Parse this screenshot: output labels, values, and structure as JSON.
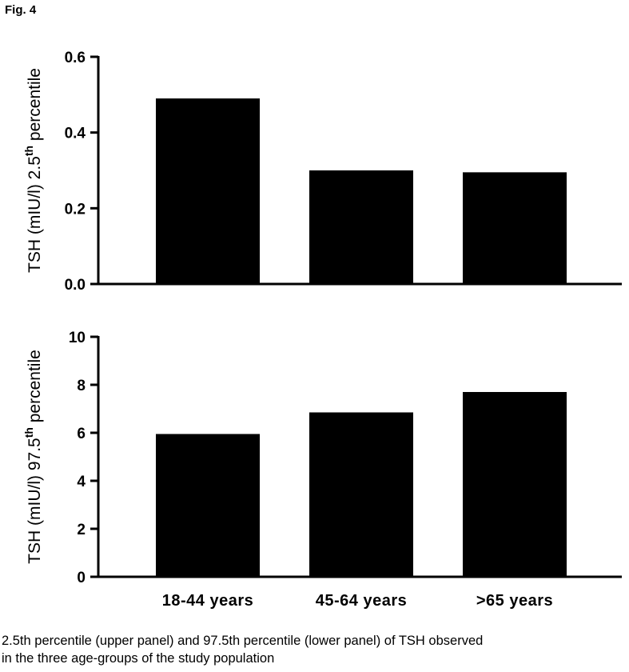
{
  "figure": {
    "label": "Fig. 4",
    "caption_line1": "2.5th percentile (upper panel) and 97.5th percentile (lower panel) of TSH observed",
    "caption_line2": "in the three age-groups of the study population"
  },
  "chart_data": [
    {
      "type": "bar",
      "panel": "upper",
      "categories": [
        "18-44 years",
        "45-64 years",
        ">65 years"
      ],
      "values": [
        0.49,
        0.3,
        0.295
      ],
      "ylabel_main": "TSH (mIU/l) 2.5",
      "ylabel_sup": "th",
      "ylabel_tail": "percentile",
      "ylim": [
        0,
        0.6
      ],
      "yticks": [
        "0.0",
        "0.2",
        "0.4",
        "0.6"
      ],
      "show_category_labels": false,
      "bar_color": "#000000",
      "grid": false
    },
    {
      "type": "bar",
      "panel": "lower",
      "categories": [
        "18-44 years",
        "45-64 years",
        ">65 years"
      ],
      "values": [
        5.95,
        6.85,
        7.7
      ],
      "ylabel_main": "TSH (mIU/l) 97.5",
      "ylabel_sup": "th",
      "ylabel_tail": "percentile",
      "ylim": [
        0,
        10
      ],
      "yticks": [
        "0",
        "2",
        "4",
        "6",
        "8",
        "10"
      ],
      "show_category_labels": true,
      "bar_color": "#000000",
      "grid": false
    }
  ]
}
